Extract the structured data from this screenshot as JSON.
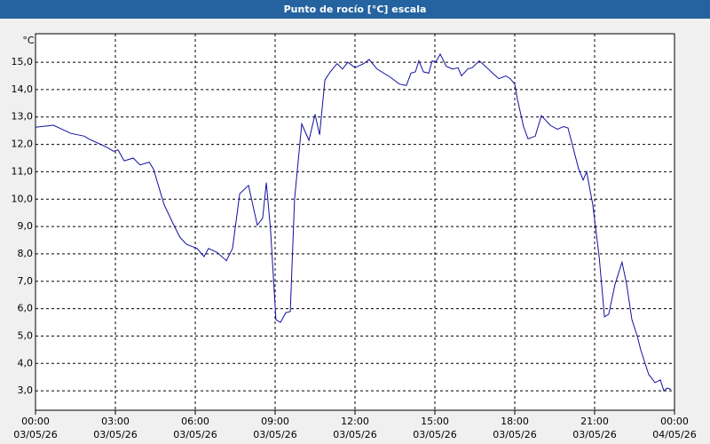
{
  "chart_data": {
    "type": "line",
    "title": "Punto de rocío [°C] escala",
    "y_label": "°C",
    "color": "#1010a0",
    "grid": true,
    "xlim": [
      0,
      24
    ],
    "ylim": [
      2.29,
      16.04
    ],
    "xticks": [
      {
        "value": 0,
        "label": "00:00\n03/05/26"
      },
      {
        "value": 3,
        "label": "03:00\n03/05/26"
      },
      {
        "value": 6,
        "label": "06:00\n03/05/26"
      },
      {
        "value": 9,
        "label": "09:00\n03/05/26"
      },
      {
        "value": 12,
        "label": "12:00\n03/05/26"
      },
      {
        "value": 15,
        "label": "15:00\n03/05/26"
      },
      {
        "value": 18,
        "label": "18:00\n03/05/26"
      },
      {
        "value": 21,
        "label": "21:00\n03/05/26"
      },
      {
        "value": 24,
        "label": "00:00\n04/05/26"
      }
    ],
    "yticks": [
      {
        "value": 3,
        "label": "3,0"
      },
      {
        "value": 4,
        "label": "4,0"
      },
      {
        "value": 5,
        "label": "5,0"
      },
      {
        "value": 6,
        "label": "6,0"
      },
      {
        "value": 7,
        "label": "7,0"
      },
      {
        "value": 8,
        "label": "8,0"
      },
      {
        "value": 9,
        "label": "9,0"
      },
      {
        "value": 10,
        "label": "10,0"
      },
      {
        "value": 11,
        "label": "11,0"
      },
      {
        "value": 12,
        "label": "12,0"
      },
      {
        "value": 13,
        "label": "13,0"
      },
      {
        "value": 14,
        "label": "14,0"
      },
      {
        "value": 15,
        "label": "15,0"
      }
    ],
    "x": [
      0,
      0.67,
      1.33,
      1.83,
      2,
      2.33,
      2.67,
      2.93,
      3.1,
      3.33,
      3.67,
      3.93,
      4.27,
      4.43,
      4.83,
      5.17,
      5.43,
      5.67,
      6.07,
      6.33,
      6.5,
      6.83,
      7.17,
      7.4,
      7.67,
      8,
      8.33,
      8.53,
      8.67,
      8.83,
      9.03,
      9.2,
      9.4,
      9.57,
      9.73,
      10,
      10.27,
      10.5,
      10.67,
      10.87,
      11.07,
      11.33,
      11.53,
      11.73,
      12,
      12.33,
      12.53,
      12.83,
      13.33,
      13.67,
      13.93,
      14.1,
      14.27,
      14.4,
      14.57,
      14.77,
      14.9,
      15.03,
      15.2,
      15.43,
      15.67,
      15.87,
      16,
      16.23,
      16.4,
      16.67,
      16.9,
      17.17,
      17.4,
      17.67,
      17.83,
      18,
      18.1,
      18.33,
      18.5,
      18.77,
      19,
      19.33,
      19.6,
      19.83,
      20,
      20.4,
      20.57,
      20.7,
      20.93,
      21.17,
      21.37,
      21.53,
      21.77,
      22.03,
      22.2,
      22.4,
      22.6,
      22.73,
      23.03,
      23.27,
      23.47,
      23.6,
      23.73,
      23.87
    ],
    "values": [
      12.63,
      12.7,
      12.4,
      12.3,
      12.2,
      12.05,
      11.9,
      11.75,
      11.8,
      11.4,
      11.5,
      11.25,
      11.35,
      11.1,
      9.8,
      9.1,
      8.6,
      8.35,
      8.2,
      7.9,
      8.2,
      8.05,
      7.75,
      8.2,
      10.2,
      10.5,
      9.05,
      9.3,
      10.6,
      8.85,
      5.6,
      5.5,
      5.85,
      5.9,
      10,
      12.75,
      12.15,
      13.1,
      12.35,
      14.35,
      14.65,
      14.95,
      14.75,
      15,
      14.8,
      14.95,
      15.1,
      14.75,
      14.45,
      14.2,
      14.15,
      14.6,
      14.65,
      15.05,
      14.65,
      14.6,
      15.05,
      15,
      15.3,
      14.85,
      14.75,
      14.8,
      14.5,
      14.75,
      14.8,
      15.05,
      14.85,
      14.6,
      14.4,
      14.5,
      14.4,
      14.2,
      13.65,
      12.65,
      12.2,
      12.3,
      13.05,
      12.7,
      12.55,
      12.65,
      12.6,
      11.1,
      10.7,
      11,
      9.8,
      7.9,
      5.7,
      5.8,
      6.9,
      7.7,
      6.9,
      5.6,
      5,
      4.5,
      3.6,
      3.3,
      3.4,
      3,
      3.1,
      3.05
    ]
  }
}
